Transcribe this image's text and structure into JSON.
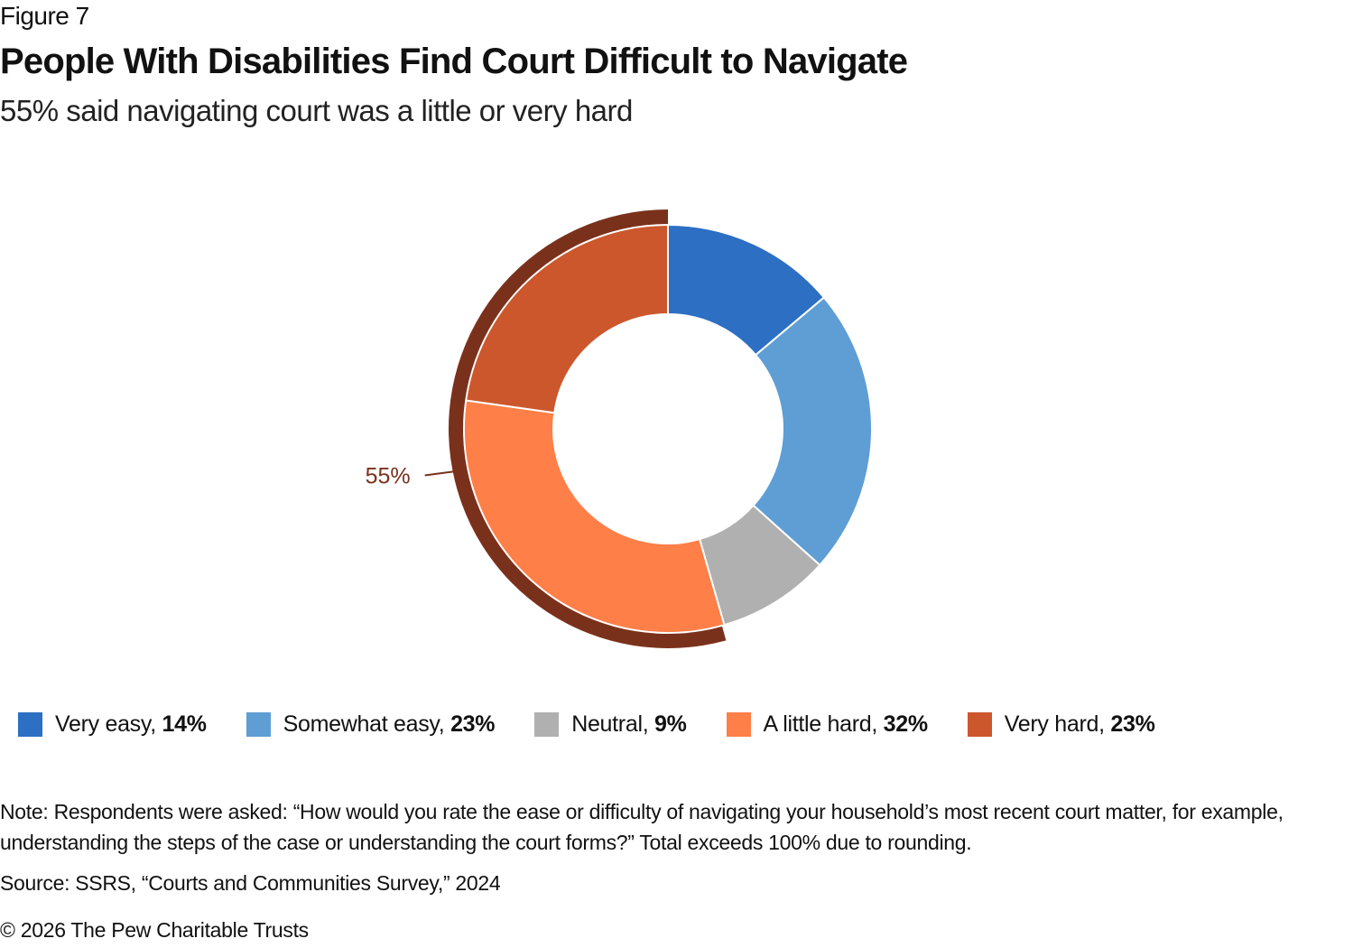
{
  "figure_label": "Figure 7",
  "title": "People With Disabilities Find Court Difficult to Navigate",
  "subtitle": "55% said navigating court was a little or very hard",
  "chart_data": {
    "type": "pie",
    "subtype": "donut",
    "title": "People With Disabilities Find Court Difficult to Navigate",
    "subtitle": "55% said navigating court was a little or very hard",
    "categories": [
      "Very easy",
      "Somewhat easy",
      "Neutral",
      "A little hard",
      "Very hard"
    ],
    "values": [
      14,
      23,
      9,
      32,
      23
    ],
    "unit": "%",
    "colors": [
      "#2D6FC3",
      "#5E9ED4",
      "#B0B0B0",
      "#FF7F48",
      "#CC572C"
    ],
    "highlight": {
      "label": "55%",
      "categories": [
        "A little hard",
        "Very hard"
      ],
      "color": "#7A311C"
    },
    "legend_position": "bottom"
  },
  "legend": [
    {
      "label": "Very easy, ",
      "value": "14%",
      "color": "#2D6FC3"
    },
    {
      "label": "Somewhat easy, ",
      "value": "23%",
      "color": "#5E9ED4"
    },
    {
      "label": "Neutral, ",
      "value": "9%",
      "color": "#B0B0B0"
    },
    {
      "label": "A little hard, ",
      "value": "32%",
      "color": "#FF7F48"
    },
    {
      "label": "Very hard, ",
      "value": "23%",
      "color": "#CC572C"
    }
  ],
  "note": "Note: Respondents were asked: “How would you rate the ease or difficulty of navigating your household’s most recent court matter, for example, understanding the steps of the case or understanding the court forms?” Total exceeds 100% due to rounding.",
  "source": "Source: SSRS, “Courts and Communities Survey,” 2024",
  "copyright": "© 2026 The Pew Charitable Trusts"
}
